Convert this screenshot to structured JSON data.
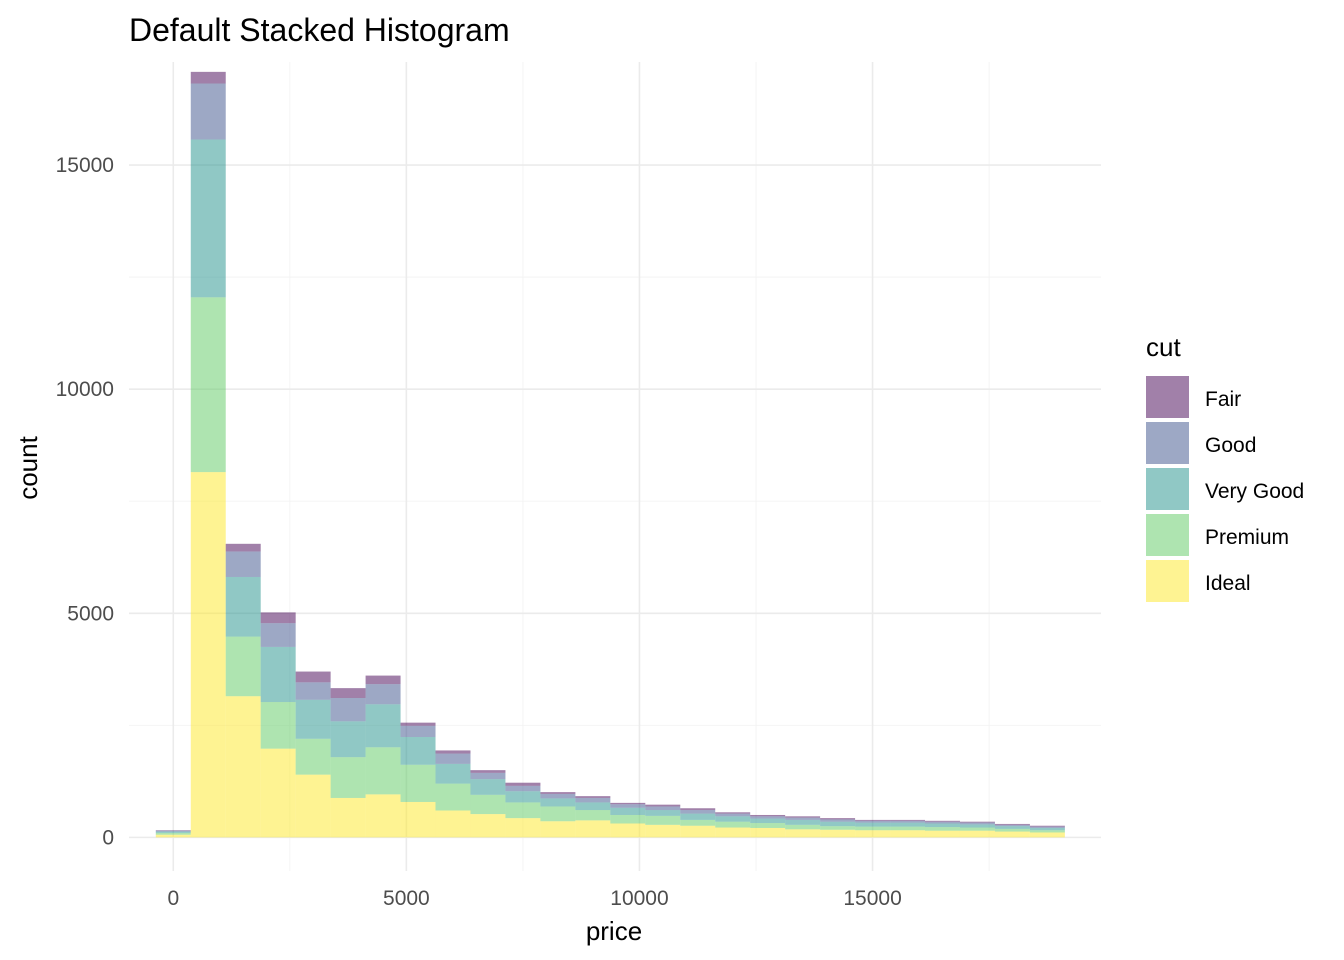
{
  "chart_data": {
    "type": "bar",
    "title": "Default Stacked Histogram",
    "xlabel": "price",
    "ylabel": "count",
    "xlim": [
      -950,
      19900
    ],
    "ylim": [
      -750,
      17300
    ],
    "x_ticks": [
      0,
      5000,
      10000,
      15000
    ],
    "y_ticks": [
      0,
      5000,
      10000,
      15000
    ],
    "grid": true,
    "stacked": true,
    "bin_width": 750,
    "legend": {
      "title": "cut",
      "placement": "right"
    },
    "bin_centers": [
      0,
      750,
      1500,
      2250,
      3000,
      3750,
      4500,
      5250,
      6000,
      6750,
      7500,
      8250,
      9000,
      9750,
      10500,
      11250,
      12000,
      12750,
      13500,
      14250,
      15000,
      15750,
      16500,
      17250,
      18000,
      18750
    ],
    "series": [
      {
        "name": "Ideal",
        "color": "#fde725",
        "values": [
          60,
          8150,
          3150,
          1980,
          1400,
          880,
          960,
          790,
          600,
          520,
          430,
          360,
          380,
          310,
          280,
          260,
          220,
          210,
          180,
          170,
          160,
          160,
          150,
          150,
          130,
          110
        ]
      },
      {
        "name": "Premium",
        "color": "#5ec962",
        "values": [
          40,
          3900,
          1330,
          1040,
          800,
          910,
          1050,
          830,
          600,
          430,
          350,
          330,
          230,
          190,
          200,
          130,
          130,
          110,
          100,
          80,
          80,
          80,
          80,
          70,
          60,
          50
        ]
      },
      {
        "name": "Very Good",
        "color": "#21918c",
        "values": [
          30,
          3520,
          1330,
          1230,
          870,
          800,
          960,
          620,
          440,
          350,
          250,
          180,
          170,
          160,
          130,
          140,
          120,
          100,
          110,
          100,
          90,
          90,
          80,
          70,
          60,
          50
        ]
      },
      {
        "name": "Good",
        "color": "#3b528b",
        "values": [
          20,
          1250,
          570,
          530,
          390,
          520,
          450,
          250,
          230,
          140,
          120,
          100,
          100,
          80,
          80,
          80,
          60,
          50,
          50,
          50,
          40,
          40,
          40,
          40,
          30,
          30
        ]
      },
      {
        "name": "Fair",
        "color": "#440154",
        "values": [
          10,
          260,
          170,
          240,
          240,
          220,
          190,
          70,
          70,
          60,
          70,
          40,
          40,
          30,
          40,
          40,
          30,
          30,
          30,
          30,
          20,
          20,
          20,
          20,
          20,
          20
        ]
      }
    ]
  }
}
